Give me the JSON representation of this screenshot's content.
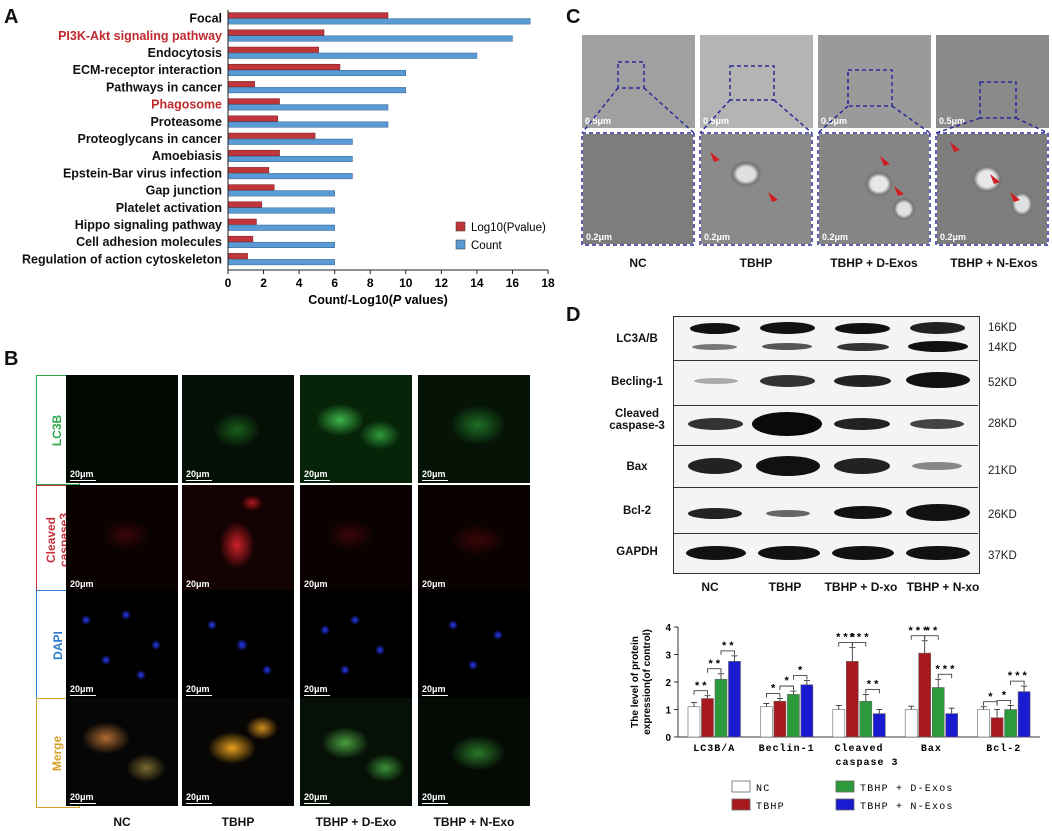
{
  "panels": {
    "A": "A",
    "B": "B",
    "C": "C",
    "D": "D"
  },
  "panelA": {
    "chart_data": {
      "type": "bar",
      "categories": [
        "Focal",
        "PI3K-Akt signaling pathway",
        "Endocytosis",
        "ECM-receptor interaction",
        "Pathways in cancer",
        "Phagosome",
        "Proteasome",
        "Proteoglycans in cancer",
        "Amoebiasis",
        "Epstein-Bar virus infection",
        "Gap junction",
        "Platelet activation",
        "Hippo signaling pathway",
        "Cell adhesion molecules",
        "Regulation of action cytoskeleton"
      ],
      "highlight": [
        "PI3K-Akt signaling pathway",
        "Phagosome"
      ],
      "series": [
        {
          "name": "Log10(Pvalue)",
          "color": "#c0363a",
          "values": [
            9,
            5.4,
            5.1,
            6.3,
            1.5,
            2.9,
            2.8,
            4.9,
            2.9,
            2.3,
            2.6,
            1.9,
            1.6,
            1.4,
            1.1
          ]
        },
        {
          "name": "Count",
          "color": "#5b9bd5",
          "values": [
            17,
            16,
            14,
            10,
            10,
            9,
            9,
            7,
            7,
            7,
            6,
            6,
            6,
            6,
            6
          ]
        }
      ],
      "xlabel": "Count/-Log10(P values)",
      "xlabel_parts": [
        "Count/-Log10(",
        "P",
        " values)"
      ],
      "xlim": [
        0,
        18
      ],
      "xticks": [
        0,
        2,
        4,
        6,
        8,
        10,
        12,
        14,
        16,
        18
      ]
    }
  },
  "panelB": {
    "rows": [
      "LC3B",
      "Cleaved caspase3",
      "DAPI",
      "Merge"
    ],
    "row_colors": [
      "#2ea84a",
      "#c8323c",
      "#2b7bd0",
      "#d6a12a"
    ],
    "columns": [
      "NC",
      "TBHP",
      "TBHP + D-Exo",
      "TBHP + N-Exo"
    ],
    "scale": "20μm"
  },
  "panelC": {
    "columns": [
      "NC",
      "TBHP",
      "TBHP + D-Exos",
      "TBHP + N-Exos"
    ],
    "scale_top": "0.5μm",
    "scale_bottom": "0.2μm"
  },
  "panelD": {
    "blot_rows": [
      {
        "label": "LC3A/B",
        "kd": [
          "16KD",
          "14KD"
        ]
      },
      {
        "label": "Becling-1",
        "kd": [
          "52KD"
        ]
      },
      {
        "label": "Cleaved caspase-3",
        "kd": [
          "28KD"
        ]
      },
      {
        "label": "Bax",
        "kd": [
          "21KD"
        ]
      },
      {
        "label": "Bcl-2",
        "kd": [
          "26KD"
        ]
      },
      {
        "label": "GAPDH",
        "kd": [
          "37KD"
        ]
      }
    ],
    "blot_columns": [
      "NC",
      "TBHP",
      "TBHP + D-xo",
      "TBHP + N-xo"
    ],
    "chart_data": {
      "type": "bar",
      "categories": [
        "LC3B/A",
        "Beclin-1",
        "Cleaved caspase 3",
        "Bax",
        "Bcl-2"
      ],
      "series": [
        {
          "name": "NC",
          "color": "#ffffff",
          "values": [
            1.1,
            1.1,
            1.0,
            1.0,
            1.0
          ]
        },
        {
          "name": "TBHP",
          "color": "#a8191e",
          "values": [
            1.4,
            1.3,
            2.75,
            3.05,
            0.7
          ]
        },
        {
          "name": "TBHP + D-Exos",
          "color": "#2a9a3a",
          "values": [
            2.1,
            1.55,
            1.3,
            1.8,
            1.0
          ]
        },
        {
          "name": "TBHP + N-Exos",
          "color": "#1a1ad0",
          "values": [
            2.75,
            1.9,
            0.85,
            0.85,
            1.65
          ]
        }
      ],
      "errors": [
        [
          0.15,
          0.12,
          0.15,
          0.12,
          0.1
        ],
        [
          0.1,
          0.1,
          0.5,
          0.45,
          0.3
        ],
        [
          0.2,
          0.12,
          0.25,
          0.3,
          0.15
        ],
        [
          0.2,
          0.15,
          0.15,
          0.2,
          0.2
        ]
      ],
      "ylabel": "The level of protein expression(of control)",
      "ylim": [
        0,
        4
      ],
      "yticks": [
        0,
        1,
        2,
        3,
        4
      ],
      "significance": [
        {
          "group": 0,
          "a": 0,
          "b": 1,
          "label": "* *"
        },
        {
          "group": 0,
          "a": 1,
          "b": 2,
          "label": "* *"
        },
        {
          "group": 0,
          "a": 2,
          "b": 3,
          "label": "* *"
        },
        {
          "group": 1,
          "a": 0,
          "b": 1,
          "label": "*"
        },
        {
          "group": 1,
          "a": 1,
          "b": 2,
          "label": "*"
        },
        {
          "group": 1,
          "a": 2,
          "b": 3,
          "label": "*"
        },
        {
          "group": 2,
          "a": 0,
          "b": 1,
          "label": "* * *"
        },
        {
          "group": 2,
          "a": 1,
          "b": 2,
          "label": "* * *"
        },
        {
          "group": 2,
          "a": 2,
          "b": 3,
          "label": "* *"
        },
        {
          "group": 3,
          "a": 0,
          "b": 1,
          "label": "* * *"
        },
        {
          "group": 3,
          "a": 1,
          "b": 2,
          "label": "* *"
        },
        {
          "group": 3,
          "a": 2,
          "b": 3,
          "label": "* * *"
        },
        {
          "group": 4,
          "a": 0,
          "b": 1,
          "label": "*"
        },
        {
          "group": 4,
          "a": 1,
          "b": 2,
          "label": "*"
        },
        {
          "group": 4,
          "a": 2,
          "b": 3,
          "label": "* * *"
        }
      ]
    }
  }
}
